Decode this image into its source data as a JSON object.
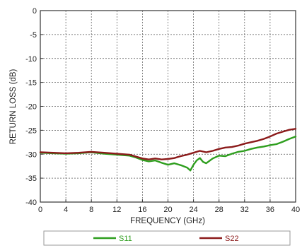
{
  "chart_data": {
    "type": "line",
    "xlabel": "FREQUENCY (GHz)",
    "ylabel": "RETURN LOSS (dB)",
    "xlim": [
      0,
      40
    ],
    "ylim": [
      -40,
      0
    ],
    "xticks": [
      0,
      4,
      8,
      12,
      16,
      20,
      24,
      28,
      32,
      36,
      40
    ],
    "yticks": [
      0,
      -5,
      -10,
      -15,
      -20,
      -25,
      -30,
      -35,
      -40
    ],
    "grid": true,
    "legend_position": "bottom",
    "series": [
      {
        "name": "S11",
        "color": "#2e9e1e",
        "x": [
          0,
          2,
          4,
          6,
          8,
          10,
          12,
          14,
          15,
          16,
          17,
          18,
          19,
          20,
          21,
          22,
          23,
          23.5,
          24,
          24.5,
          25,
          25.5,
          26,
          27,
          28,
          29,
          30,
          31,
          32,
          33,
          34,
          35,
          36,
          37,
          38,
          39,
          40
        ],
        "y": [
          -29.7,
          -29.8,
          -29.9,
          -29.8,
          -29.6,
          -29.9,
          -30.1,
          -30.3,
          -30.7,
          -31.2,
          -31.5,
          -31.3,
          -31.8,
          -32.2,
          -31.9,
          -32.3,
          -32.8,
          -33.4,
          -32.2,
          -31.3,
          -30.8,
          -31.6,
          -31.9,
          -30.9,
          -30.3,
          -30.4,
          -29.9,
          -29.5,
          -29.3,
          -28.9,
          -28.6,
          -28.4,
          -28.1,
          -27.9,
          -27.4,
          -26.8,
          -26.3
        ]
      },
      {
        "name": "S22",
        "color": "#8b1a1a",
        "x": [
          0,
          2,
          4,
          6,
          8,
          10,
          12,
          14,
          15,
          16,
          17,
          18,
          19,
          20,
          21,
          22,
          23,
          24,
          25,
          26,
          27,
          28,
          29,
          30,
          31,
          32,
          33,
          34,
          35,
          36,
          37,
          38,
          39,
          40
        ],
        "y": [
          -29.6,
          -29.7,
          -29.8,
          -29.7,
          -29.5,
          -29.7,
          -29.9,
          -30.1,
          -30.5,
          -30.9,
          -31.1,
          -30.9,
          -31.1,
          -31.0,
          -30.8,
          -30.4,
          -30.1,
          -29.7,
          -29.3,
          -29.6,
          -29.3,
          -28.9,
          -28.6,
          -28.5,
          -28.2,
          -27.8,
          -27.5,
          -27.2,
          -26.8,
          -26.3,
          -25.7,
          -25.3,
          -24.9,
          -24.7
        ]
      }
    ]
  }
}
